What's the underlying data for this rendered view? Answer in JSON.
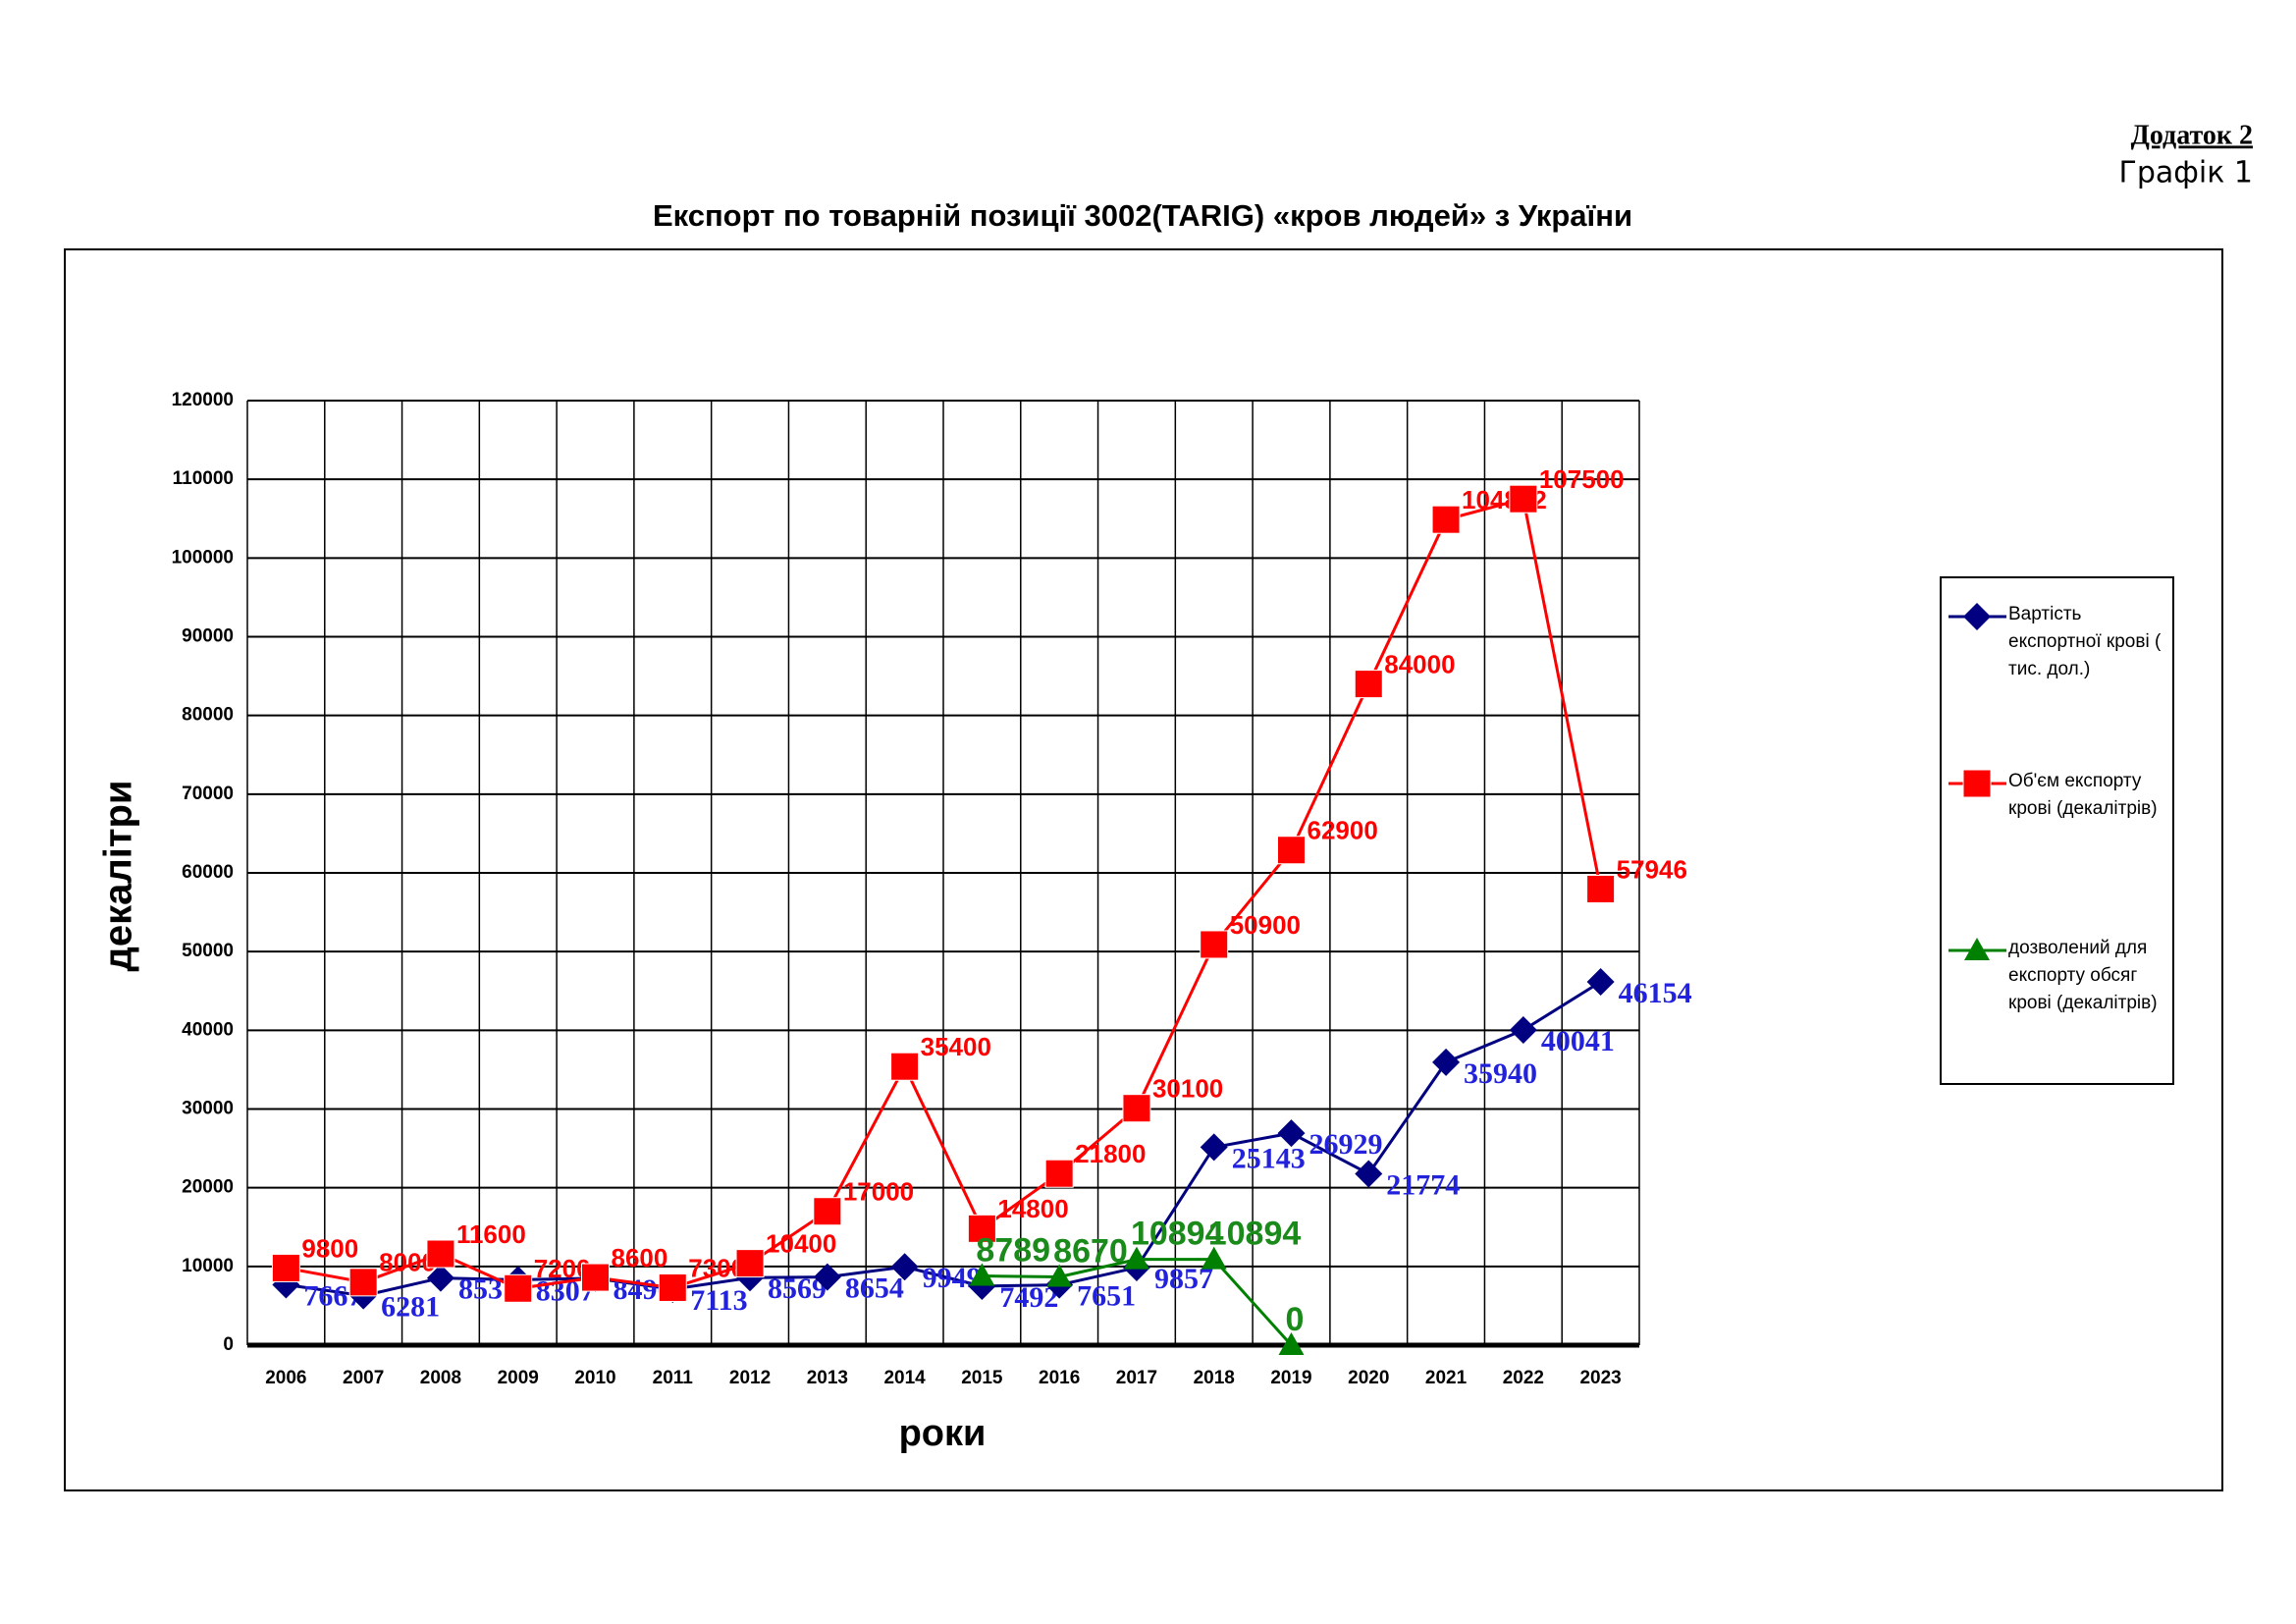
{
  "header": {
    "appendix": "Додаток 2",
    "figure": "Графік 1"
  },
  "chart_data": {
    "type": "line",
    "title": "Експорт по  товарній позиції 3002(TARIG) «кров людей» з України",
    "x_label": "роки",
    "y_label": "декалітри",
    "categories": [
      "2006",
      "2007",
      "2008",
      "2009",
      "2010",
      "2011",
      "2012",
      "2013",
      "2014",
      "2015",
      "2016",
      "2017",
      "2018",
      "2019",
      "2020",
      "2021",
      "2022",
      "2023"
    ],
    "series": [
      {
        "name": "Вартість експортної крові ( тис. дол.)",
        "color": "#000080",
        "label_color": "#2222dd",
        "marker": "diamond",
        "values": [
          7667,
          6281,
          8535,
          8307,
          8490,
          7113,
          8569,
          8654,
          9949,
          7492,
          7651,
          9857,
          25143,
          26929,
          21774,
          35940,
          40041,
          46154
        ]
      },
      {
        "name": "Об'єм експорту крові (декалітрів)",
        "color": "#ff0000",
        "label_color": "#ff0000",
        "marker": "square",
        "values": [
          9800,
          8000,
          11600,
          7200,
          8600,
          7300,
          10400,
          17000,
          35400,
          14800,
          21800,
          30100,
          50900,
          62900,
          84000,
          104882,
          107500,
          57946
        ]
      },
      {
        "name": "дозволений для експорту обсяг крові (декалітрів)",
        "color": "#008000",
        "label_color": "#1a8a1a",
        "marker": "triangle",
        "values": [
          null,
          null,
          null,
          null,
          null,
          null,
          null,
          null,
          null,
          8789,
          8670,
          10894,
          10894,
          0,
          null,
          null,
          null,
          null
        ]
      }
    ],
    "ylim": [
      0,
      120000
    ],
    "yticks": [
      0,
      10000,
      20000,
      30000,
      40000,
      50000,
      60000,
      70000,
      80000,
      90000,
      100000,
      110000,
      120000
    ],
    "grid": true,
    "legend": "right"
  }
}
